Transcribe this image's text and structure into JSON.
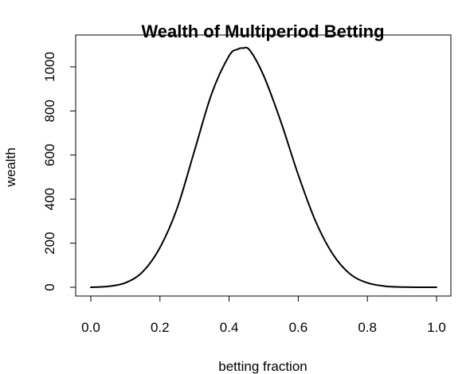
{
  "chart_data": {
    "type": "line",
    "title": "Wealth of Multiperiod Betting",
    "xlabel": "betting fraction",
    "ylabel": "wealth",
    "xlim": [
      0,
      1
    ],
    "ylim": [
      0,
      1100
    ],
    "xticks": [
      0.0,
      0.2,
      0.4,
      0.6,
      0.8,
      1.0
    ],
    "xtick_labels": [
      "0.0",
      "0.2",
      "0.4",
      "0.6",
      "0.8",
      "1.0"
    ],
    "yticks": [
      0,
      200,
      400,
      600,
      800,
      1000
    ],
    "ytick_labels": [
      "0",
      "200",
      "400",
      "600",
      "800",
      "1000"
    ],
    "grid": false,
    "series": [
      {
        "color": "#000000",
        "x": [
          0.0,
          0.05,
          0.1,
          0.15,
          0.2,
          0.25,
          0.3,
          0.35,
          0.4,
          0.425,
          0.44,
          0.46,
          0.5,
          0.55,
          0.6,
          0.65,
          0.7,
          0.75,
          0.8,
          0.85,
          0.9,
          0.95,
          1.0
        ],
        "y": [
          0,
          4,
          20,
          70,
          180,
          360,
          620,
          880,
          1050,
          1080,
          1085,
          1075,
          960,
          750,
          510,
          300,
          150,
          60,
          20,
          5,
          1,
          0,
          0
        ]
      }
    ]
  }
}
